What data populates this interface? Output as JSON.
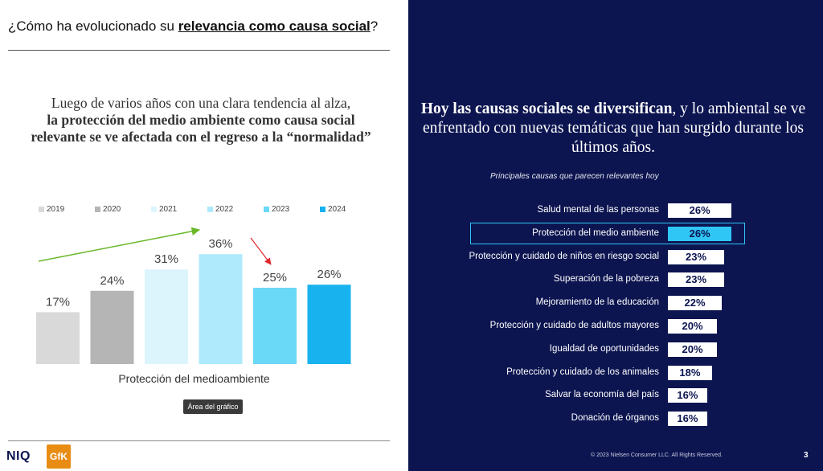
{
  "left": {
    "heading_prefix": "¿Cómo ha evolucionado su ",
    "heading_emph": "relevancia como causa social",
    "heading_suffix": "?",
    "insight_normal": "Luego de varios años con una clara tendencia al alza,",
    "insight_bold": "la protección del medio ambiente como causa social relevante se ve afectada con el regreso a la “normalidad”",
    "chart_caption": "Protección del medioambiente",
    "tooltip": "Área del gráfico"
  },
  "chart_data": [
    {
      "type": "bar",
      "categories": [
        "2019",
        "2020",
        "2021",
        "2022",
        "2023",
        "2024"
      ],
      "values": [
        17,
        24,
        31,
        36,
        25,
        26
      ],
      "value_labels": [
        "17%",
        "24%",
        "31%",
        "36%",
        "25%",
        "26%"
      ],
      "colors": [
        "#d9d9d9",
        "#b5b5b5",
        "#dcf5fd",
        "#aeeafb",
        "#6ad8f7",
        "#18b3ee"
      ],
      "xlabel": "Protección del medioambiente",
      "ylim": [
        0,
        40
      ],
      "legend": "top",
      "annotations": [
        "up-trend-arrow",
        "down-arrow"
      ]
    },
    {
      "type": "bar",
      "orientation": "horizontal",
      "title": "Principales causas que parecen relevantes hoy",
      "categories": [
        "Salud mental de las personas",
        "Protección del medio ambiente",
        "Protección y cuidado de niños en riesgo social",
        "Superación de la pobreza",
        "Mejoramiento de la educación",
        "Protección y cuidado de adultos mayores",
        "Igualdad de oportunidades",
        "Protección y cuidado de los animales",
        "Salvar la economía del país",
        "Donación de órganos"
      ],
      "values": [
        26,
        26,
        23,
        23,
        22,
        20,
        20,
        18,
        16,
        16
      ],
      "value_labels": [
        "26%",
        "26%",
        "23%",
        "23%",
        "22%",
        "20%",
        "20%",
        "18%",
        "16%",
        "16%"
      ],
      "highlighted": "Protección del medio ambiente"
    }
  ],
  "right": {
    "title_bold": "Hoy las causas sociales se diversifican",
    "title_normal": ", y lo ambiental se ve enfrentado con nuevas temáticas que han surgido durante los últimos años."
  },
  "footer": {
    "logo_niq": "NIQ",
    "logo_gfk": "GfK",
    "copyright": "© 2023 Nielsen Consumer LLC. All Rights Reserved.",
    "page_number": "3"
  }
}
